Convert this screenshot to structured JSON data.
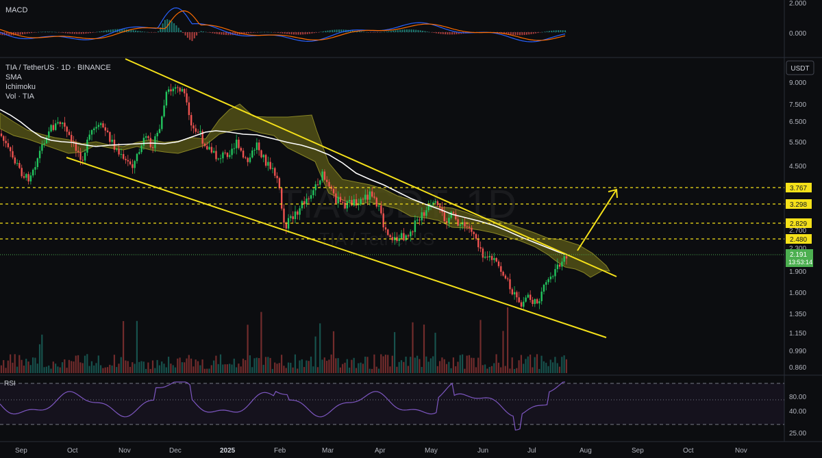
{
  "macd_pane": {
    "title": "MACD",
    "axis_ticks": [
      "2.000",
      "0.000"
    ]
  },
  "main_pane": {
    "symbol_line": "TIA / TetherUS · 1D · BINANCE",
    "indicators": [
      "SMA",
      "Ichimoku",
      "Vol · TIA"
    ],
    "currency_button": "USDT",
    "watermark": "TIAUSDT, 1D",
    "watermark_sub": "TIA / TetherUS",
    "price_ticks": [
      "9.000",
      "7.500",
      "6.500",
      "5.500",
      "4.500",
      "2.700",
      "2.300",
      "1.900",
      "1.600",
      "1.350",
      "1.150",
      "0.990",
      "0.860"
    ],
    "horizontal_levels": [
      {
        "label": "3.767",
        "color": "#f5e11a"
      },
      {
        "label": "3.298",
        "color": "#f5e11a"
      },
      {
        "label": "2.829",
        "color": "#f5e11a"
      },
      {
        "label": "2.480",
        "color": "#f5e11a"
      }
    ],
    "last_price": {
      "label": "2.191",
      "countdown": "13:53:14",
      "color": "#4caf50"
    }
  },
  "rsi_pane": {
    "title": "RSI",
    "axis_ticks": [
      "80.00",
      "40.00",
      "25.00"
    ]
  },
  "time_axis": {
    "labels": [
      "Sep",
      "Oct",
      "Nov",
      "Dec",
      "2025",
      "Feb",
      "Mar",
      "Apr",
      "May",
      "Jun",
      "Jul",
      "Aug",
      "Sep",
      "Oct",
      "Nov"
    ]
  },
  "colors": {
    "background": "#0c0d10",
    "trendline": "#f5e11a",
    "candle_up": "#26a69a",
    "candle_down": "#ef5350",
    "candle_up_bright": "#22c55e",
    "cloud": "#5b5a17",
    "sma": "#ffffff",
    "rsi": "#7e57c2",
    "macd_line": "#2962ff",
    "signal_line": "#ff6d00"
  }
}
